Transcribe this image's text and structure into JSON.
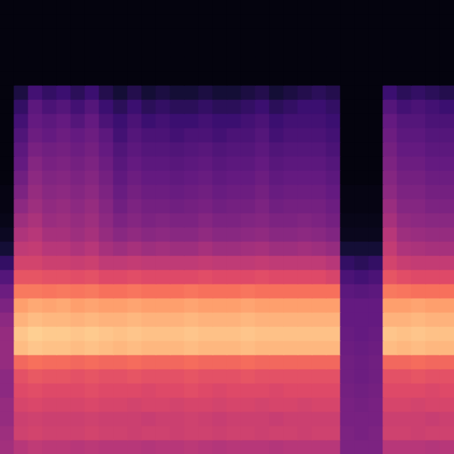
{
  "chart_data": {
    "type": "heatmap",
    "color": "magma",
    "tick_labels": false,
    "grid": false,
    "zlim": [
      0,
      1
    ],
    "cells": [
      [
        0.02,
        0.02,
        0.02,
        0.02,
        0.02,
        0.02,
        0.02,
        0.02,
        0.02,
        0.02,
        0.02,
        0.02,
        0.02,
        0.02,
        0.02,
        0.02,
        0.02,
        0.02,
        0.02,
        0.02,
        0.02,
        0.02,
        0.02,
        0.02,
        0.02,
        0.02,
        0.02,
        0.02,
        0.02,
        0.02,
        0.02,
        0.02
      ],
      [
        0.02,
        0.02,
        0.02,
        0.02,
        0.02,
        0.02,
        0.02,
        0.02,
        0.02,
        0.02,
        0.02,
        0.02,
        0.02,
        0.02,
        0.02,
        0.02,
        0.02,
        0.02,
        0.02,
        0.02,
        0.02,
        0.02,
        0.02,
        0.02,
        0.02,
        0.02,
        0.02,
        0.02,
        0.02,
        0.02,
        0.02,
        0.02
      ],
      [
        0.02,
        0.02,
        0.02,
        0.02,
        0.02,
        0.02,
        0.02,
        0.02,
        0.02,
        0.02,
        0.02,
        0.02,
        0.02,
        0.02,
        0.02,
        0.02,
        0.02,
        0.02,
        0.02,
        0.02,
        0.02,
        0.02,
        0.02,
        0.02,
        0.02,
        0.02,
        0.02,
        0.02,
        0.02,
        0.02,
        0.02,
        0.02
      ],
      [
        0.02,
        0.02,
        0.02,
        0.02,
        0.02,
        0.02,
        0.02,
        0.02,
        0.02,
        0.02,
        0.02,
        0.02,
        0.02,
        0.02,
        0.02,
        0.02,
        0.02,
        0.02,
        0.02,
        0.02,
        0.02,
        0.02,
        0.02,
        0.02,
        0.02,
        0.02,
        0.02,
        0.02,
        0.02,
        0.02,
        0.02,
        0.02
      ],
      [
        0.02,
        0.02,
        0.02,
        0.02,
        0.02,
        0.02,
        0.02,
        0.02,
        0.02,
        0.02,
        0.02,
        0.02,
        0.02,
        0.02,
        0.02,
        0.02,
        0.02,
        0.02,
        0.02,
        0.02,
        0.02,
        0.02,
        0.02,
        0.02,
        0.02,
        0.02,
        0.02,
        0.02,
        0.02,
        0.02,
        0.02,
        0.02
      ],
      [
        0.02,
        0.02,
        0.02,
        0.02,
        0.02,
        0.02,
        0.02,
        0.02,
        0.02,
        0.02,
        0.02,
        0.02,
        0.02,
        0.02,
        0.02,
        0.02,
        0.02,
        0.02,
        0.02,
        0.02,
        0.02,
        0.02,
        0.02,
        0.02,
        0.02,
        0.02,
        0.02,
        0.02,
        0.02,
        0.02,
        0.02,
        0.02
      ],
      [
        0.02,
        0.12,
        0.22,
        0.18,
        0.2,
        0.16,
        0.2,
        0.14,
        0.1,
        0.14,
        0.1,
        0.12,
        0.1,
        0.1,
        0.12,
        0.1,
        0.1,
        0.12,
        0.14,
        0.1,
        0.12,
        0.14,
        0.16,
        0.14,
        0.02,
        0.02,
        0.02,
        0.2,
        0.16,
        0.18,
        0.16,
        0.14
      ],
      [
        0.02,
        0.18,
        0.28,
        0.24,
        0.26,
        0.22,
        0.26,
        0.2,
        0.16,
        0.2,
        0.16,
        0.18,
        0.16,
        0.16,
        0.18,
        0.16,
        0.16,
        0.18,
        0.2,
        0.16,
        0.18,
        0.2,
        0.2,
        0.18,
        0.02,
        0.02,
        0.02,
        0.26,
        0.22,
        0.24,
        0.22,
        0.2
      ],
      [
        0.02,
        0.22,
        0.3,
        0.28,
        0.3,
        0.26,
        0.3,
        0.24,
        0.2,
        0.24,
        0.2,
        0.22,
        0.2,
        0.2,
        0.22,
        0.2,
        0.2,
        0.22,
        0.24,
        0.2,
        0.22,
        0.22,
        0.22,
        0.2,
        0.02,
        0.02,
        0.02,
        0.3,
        0.26,
        0.26,
        0.24,
        0.24
      ],
      [
        0.02,
        0.25,
        0.32,
        0.3,
        0.32,
        0.3,
        0.32,
        0.28,
        0.22,
        0.26,
        0.24,
        0.24,
        0.22,
        0.24,
        0.24,
        0.22,
        0.24,
        0.24,
        0.26,
        0.22,
        0.24,
        0.24,
        0.24,
        0.22,
        0.02,
        0.02,
        0.02,
        0.32,
        0.28,
        0.28,
        0.26,
        0.26
      ],
      [
        0.02,
        0.28,
        0.35,
        0.33,
        0.34,
        0.32,
        0.34,
        0.3,
        0.25,
        0.28,
        0.26,
        0.26,
        0.25,
        0.26,
        0.27,
        0.25,
        0.26,
        0.26,
        0.28,
        0.25,
        0.26,
        0.26,
        0.26,
        0.24,
        0.02,
        0.02,
        0.02,
        0.34,
        0.3,
        0.3,
        0.28,
        0.28
      ],
      [
        0.02,
        0.3,
        0.38,
        0.35,
        0.36,
        0.34,
        0.36,
        0.32,
        0.27,
        0.3,
        0.28,
        0.28,
        0.27,
        0.28,
        0.29,
        0.27,
        0.28,
        0.28,
        0.3,
        0.27,
        0.28,
        0.28,
        0.28,
        0.26,
        0.02,
        0.02,
        0.02,
        0.36,
        0.32,
        0.32,
        0.3,
        0.3
      ],
      [
        0.02,
        0.33,
        0.4,
        0.37,
        0.38,
        0.36,
        0.38,
        0.34,
        0.29,
        0.32,
        0.3,
        0.3,
        0.29,
        0.3,
        0.31,
        0.29,
        0.3,
        0.3,
        0.32,
        0.29,
        0.3,
        0.3,
        0.3,
        0.28,
        0.02,
        0.02,
        0.02,
        0.38,
        0.34,
        0.34,
        0.32,
        0.32
      ],
      [
        0.03,
        0.36,
        0.42,
        0.39,
        0.4,
        0.38,
        0.4,
        0.36,
        0.31,
        0.34,
        0.32,
        0.32,
        0.31,
        0.32,
        0.33,
        0.31,
        0.32,
        0.32,
        0.34,
        0.31,
        0.32,
        0.32,
        0.32,
        0.3,
        0.03,
        0.03,
        0.03,
        0.4,
        0.36,
        0.36,
        0.34,
        0.34
      ],
      [
        0.03,
        0.4,
        0.44,
        0.41,
        0.42,
        0.4,
        0.42,
        0.38,
        0.33,
        0.36,
        0.34,
        0.34,
        0.33,
        0.34,
        0.35,
        0.33,
        0.34,
        0.34,
        0.36,
        0.33,
        0.34,
        0.34,
        0.34,
        0.32,
        0.03,
        0.03,
        0.03,
        0.43,
        0.38,
        0.38,
        0.36,
        0.36
      ],
      [
        0.04,
        0.44,
        0.47,
        0.43,
        0.44,
        0.42,
        0.44,
        0.4,
        0.36,
        0.38,
        0.36,
        0.37,
        0.36,
        0.36,
        0.38,
        0.36,
        0.36,
        0.37,
        0.38,
        0.36,
        0.36,
        0.37,
        0.36,
        0.34,
        0.04,
        0.04,
        0.04,
        0.46,
        0.41,
        0.4,
        0.39,
        0.39
      ],
      [
        0.06,
        0.48,
        0.5,
        0.46,
        0.46,
        0.44,
        0.46,
        0.42,
        0.39,
        0.41,
        0.39,
        0.4,
        0.39,
        0.39,
        0.41,
        0.39,
        0.39,
        0.4,
        0.41,
        0.39,
        0.39,
        0.4,
        0.39,
        0.37,
        0.05,
        0.05,
        0.05,
        0.5,
        0.44,
        0.43,
        0.42,
        0.42
      ],
      [
        0.1,
        0.52,
        0.53,
        0.5,
        0.5,
        0.48,
        0.5,
        0.46,
        0.44,
        0.46,
        0.44,
        0.45,
        0.44,
        0.44,
        0.46,
        0.44,
        0.44,
        0.45,
        0.46,
        0.44,
        0.44,
        0.45,
        0.44,
        0.42,
        0.1,
        0.1,
        0.1,
        0.53,
        0.48,
        0.47,
        0.46,
        0.46
      ],
      [
        0.18,
        0.57,
        0.57,
        0.55,
        0.55,
        0.54,
        0.55,
        0.52,
        0.52,
        0.53,
        0.52,
        0.52,
        0.52,
        0.52,
        0.53,
        0.52,
        0.52,
        0.52,
        0.53,
        0.52,
        0.52,
        0.52,
        0.52,
        0.5,
        0.18,
        0.16,
        0.18,
        0.57,
        0.54,
        0.53,
        0.53,
        0.53
      ],
      [
        0.26,
        0.63,
        0.63,
        0.62,
        0.62,
        0.61,
        0.62,
        0.6,
        0.6,
        0.61,
        0.6,
        0.6,
        0.6,
        0.6,
        0.61,
        0.6,
        0.6,
        0.6,
        0.61,
        0.6,
        0.6,
        0.6,
        0.6,
        0.58,
        0.24,
        0.22,
        0.24,
        0.63,
        0.61,
        0.6,
        0.6,
        0.6
      ],
      [
        0.32,
        0.72,
        0.72,
        0.71,
        0.72,
        0.71,
        0.72,
        0.7,
        0.7,
        0.71,
        0.7,
        0.7,
        0.7,
        0.71,
        0.7,
        0.7,
        0.7,
        0.71,
        0.7,
        0.7,
        0.7,
        0.7,
        0.7,
        0.7,
        0.28,
        0.27,
        0.28,
        0.72,
        0.71,
        0.7,
        0.7,
        0.7
      ],
      [
        0.36,
        0.8,
        0.82,
        0.81,
        0.82,
        0.8,
        0.81,
        0.8,
        0.8,
        0.81,
        0.8,
        0.8,
        0.8,
        0.81,
        0.8,
        0.8,
        0.8,
        0.81,
        0.8,
        0.8,
        0.8,
        0.8,
        0.8,
        0.8,
        0.3,
        0.3,
        0.3,
        0.8,
        0.8,
        0.81,
        0.8,
        0.8
      ],
      [
        0.4,
        0.84,
        0.86,
        0.85,
        0.85,
        0.84,
        0.85,
        0.84,
        0.84,
        0.85,
        0.84,
        0.84,
        0.84,
        0.85,
        0.84,
        0.84,
        0.84,
        0.85,
        0.84,
        0.84,
        0.84,
        0.84,
        0.84,
        0.84,
        0.3,
        0.3,
        0.3,
        0.84,
        0.84,
        0.85,
        0.84,
        0.84
      ],
      [
        0.42,
        0.88,
        0.9,
        0.89,
        0.89,
        0.88,
        0.89,
        0.88,
        0.87,
        0.88,
        0.87,
        0.87,
        0.87,
        0.88,
        0.87,
        0.87,
        0.87,
        0.88,
        0.87,
        0.87,
        0.87,
        0.87,
        0.87,
        0.87,
        0.31,
        0.3,
        0.31,
        0.88,
        0.87,
        0.88,
        0.87,
        0.87
      ],
      [
        0.42,
        0.86,
        0.88,
        0.87,
        0.87,
        0.86,
        0.87,
        0.86,
        0.85,
        0.86,
        0.85,
        0.85,
        0.85,
        0.86,
        0.85,
        0.85,
        0.85,
        0.86,
        0.85,
        0.85,
        0.85,
        0.85,
        0.85,
        0.85,
        0.32,
        0.31,
        0.32,
        0.86,
        0.85,
        0.86,
        0.85,
        0.85
      ],
      [
        0.42,
        0.68,
        0.7,
        0.69,
        0.69,
        0.68,
        0.69,
        0.68,
        0.68,
        0.69,
        0.68,
        0.68,
        0.68,
        0.69,
        0.68,
        0.68,
        0.68,
        0.69,
        0.68,
        0.68,
        0.68,
        0.68,
        0.68,
        0.68,
        0.33,
        0.32,
        0.33,
        0.68,
        0.68,
        0.69,
        0.68,
        0.68
      ],
      [
        0.4,
        0.62,
        0.64,
        0.63,
        0.63,
        0.62,
        0.63,
        0.62,
        0.62,
        0.63,
        0.62,
        0.62,
        0.62,
        0.63,
        0.62,
        0.62,
        0.62,
        0.63,
        0.62,
        0.62,
        0.62,
        0.62,
        0.62,
        0.62,
        0.33,
        0.32,
        0.33,
        0.62,
        0.62,
        0.63,
        0.62,
        0.62
      ],
      [
        0.4,
        0.6,
        0.61,
        0.6,
        0.6,
        0.6,
        0.61,
        0.6,
        0.6,
        0.6,
        0.59,
        0.6,
        0.6,
        0.61,
        0.6,
        0.59,
        0.6,
        0.6,
        0.6,
        0.59,
        0.6,
        0.6,
        0.6,
        0.6,
        0.34,
        0.33,
        0.34,
        0.6,
        0.6,
        0.6,
        0.59,
        0.6
      ],
      [
        0.42,
        0.58,
        0.59,
        0.58,
        0.58,
        0.58,
        0.59,
        0.58,
        0.58,
        0.57,
        0.58,
        0.58,
        0.57,
        0.58,
        0.58,
        0.57,
        0.58,
        0.58,
        0.57,
        0.58,
        0.58,
        0.57,
        0.58,
        0.58,
        0.35,
        0.34,
        0.35,
        0.58,
        0.58,
        0.57,
        0.58,
        0.58
      ],
      [
        0.42,
        0.55,
        0.56,
        0.55,
        0.55,
        0.55,
        0.56,
        0.55,
        0.55,
        0.55,
        0.54,
        0.55,
        0.55,
        0.56,
        0.55,
        0.54,
        0.55,
        0.55,
        0.55,
        0.54,
        0.55,
        0.55,
        0.55,
        0.55,
        0.35,
        0.35,
        0.35,
        0.55,
        0.55,
        0.55,
        0.54,
        0.55
      ],
      [
        0.44,
        0.56,
        0.57,
        0.56,
        0.56,
        0.56,
        0.57,
        0.56,
        0.56,
        0.55,
        0.56,
        0.56,
        0.55,
        0.56,
        0.56,
        0.55,
        0.56,
        0.56,
        0.55,
        0.56,
        0.56,
        0.55,
        0.56,
        0.56,
        0.36,
        0.35,
        0.36,
        0.56,
        0.56,
        0.55,
        0.56,
        0.56
      ],
      [
        0.45,
        0.5,
        0.52,
        0.51,
        0.51,
        0.5,
        0.51,
        0.5,
        0.5,
        0.5,
        0.49,
        0.5,
        0.5,
        0.51,
        0.5,
        0.49,
        0.5,
        0.5,
        0.5,
        0.49,
        0.5,
        0.5,
        0.5,
        0.5,
        0.36,
        0.36,
        0.36,
        0.5,
        0.5,
        0.5,
        0.49,
        0.5
      ]
    ]
  }
}
